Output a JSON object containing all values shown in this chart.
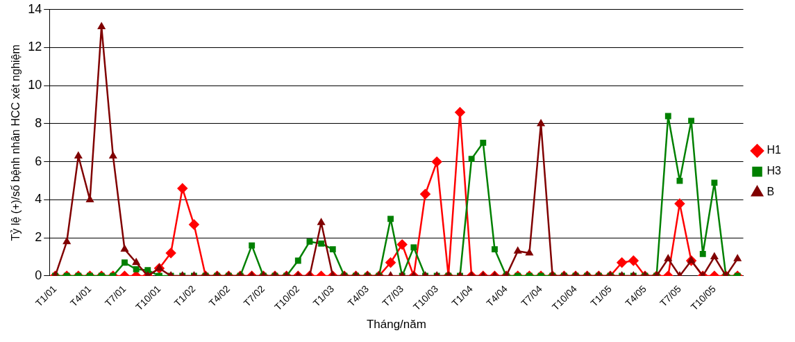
{
  "chart_data": {
    "type": "line",
    "xlabel": "Tháng/năm",
    "ylabel": "Tỷ lệ (+)/số bệnh nhân HCC xét nghiệm",
    "categories": [
      "T1/01",
      null,
      null,
      "T4/01",
      null,
      null,
      "T7/01",
      null,
      null,
      "T10/01",
      null,
      null,
      "T1/02",
      null,
      null,
      "T4/02",
      null,
      null,
      "T7/02",
      null,
      null,
      "T10/02",
      null,
      null,
      "T1/03",
      null,
      null,
      "T4/03",
      null,
      null,
      "T7/03",
      null,
      null,
      "T10/03",
      null,
      null,
      "T1/04",
      null,
      null,
      "T4/04",
      null,
      null,
      "T7/04",
      null,
      null,
      "T10/04",
      null,
      null,
      "T1/05",
      null,
      null,
      "T4/05",
      null,
      null,
      "T7/05",
      null,
      null,
      "T10/05",
      null,
      null
    ],
    "ylim": [
      0,
      14
    ],
    "yticks": [
      0,
      2,
      4,
      6,
      8,
      10,
      12,
      14
    ],
    "grid": "y",
    "legend": "right",
    "series": [
      {
        "name": "H1",
        "color": "#ff0000",
        "marker": "diamond",
        "values": [
          0,
          0,
          0,
          0,
          0,
          0,
          0,
          0,
          0,
          0.4,
          1.2,
          4.6,
          2.7,
          0,
          0,
          0,
          0,
          0,
          0,
          0,
          0,
          0,
          0,
          0,
          0,
          0,
          0,
          0,
          0,
          0.7,
          1.65,
          0,
          4.3,
          6.0,
          0,
          8.6,
          0,
          0,
          0,
          0,
          0,
          0,
          0,
          0,
          0,
          0,
          0,
          0,
          0,
          0.7,
          0.8,
          0,
          0,
          0,
          3.8,
          0.8,
          0,
          0,
          0,
          0
        ]
      },
      {
        "name": "H3",
        "color": "#008000",
        "marker": "square",
        "values": [
          0,
          0,
          0,
          0,
          0,
          0,
          0.7,
          0.35,
          0.3,
          0,
          0,
          0,
          0,
          0,
          0,
          0,
          0,
          1.6,
          0,
          0,
          0,
          0.8,
          1.8,
          1.7,
          1.4,
          0,
          0,
          0,
          0,
          3.0,
          0,
          1.5,
          0,
          0,
          0,
          0,
          6.15,
          7.0,
          1.4,
          0,
          0,
          0,
          0,
          0,
          0,
          0,
          0,
          0,
          0,
          0,
          0,
          0,
          0,
          8.4,
          5.0,
          8.15,
          1.15,
          4.9,
          0,
          0
        ]
      },
      {
        "name": "B",
        "color": "#800000",
        "marker": "triangle",
        "values": [
          0,
          1.8,
          6.3,
          4.0,
          13.1,
          6.3,
          1.4,
          0.7,
          0,
          0.4,
          0,
          0,
          0,
          0,
          0,
          0,
          0,
          0,
          0,
          0,
          0,
          0,
          0,
          2.8,
          0,
          0,
          0,
          0,
          0,
          0,
          0,
          0,
          0,
          0,
          0,
          0,
          0,
          0,
          0,
          0,
          1.3,
          1.2,
          8.0,
          0,
          0,
          0,
          0,
          0,
          0,
          0,
          0,
          0,
          0,
          0.9,
          0,
          0.8,
          0,
          1.0,
          0,
          0.9
        ]
      }
    ]
  }
}
